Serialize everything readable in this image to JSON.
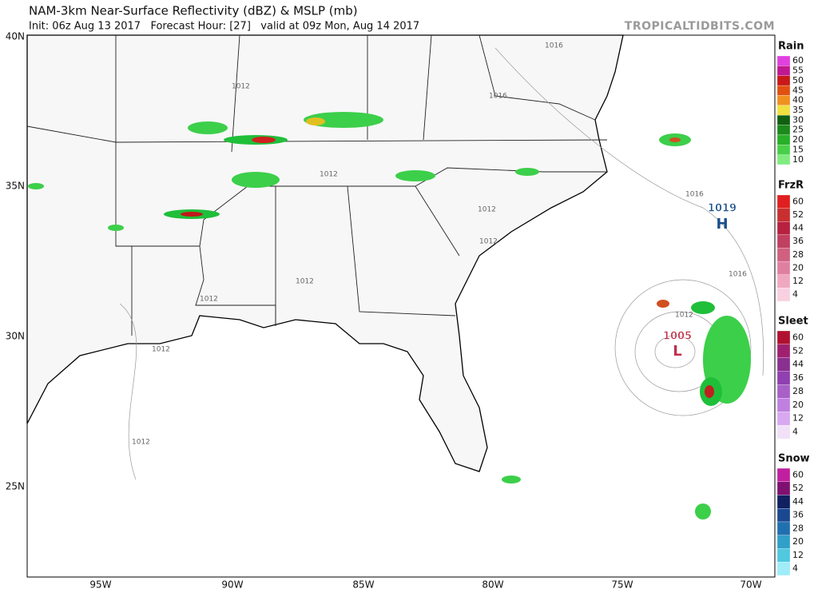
{
  "header": {
    "title": "NAM-3km Near-Surface Reflectivity (dBZ) & MSLP (mb)",
    "subtitle": "Init: 06z Aug 13 2017   Forecast Hour: [27]   valid at 09z Mon, Aug 14 2017",
    "watermark": "TROPICALTIDBITS.COM"
  },
  "map": {
    "lat_labels": [
      "40N",
      "35N",
      "30N",
      "25N"
    ],
    "lon_labels": [
      "95W",
      "90W",
      "85W",
      "80W",
      "75W",
      "70W"
    ],
    "isobar_labels": [
      "1012",
      "1012",
      "1012",
      "1012",
      "1012",
      "1012",
      "1012",
      "1012",
      "1012",
      "1016",
      "1016",
      "1016",
      "1016"
    ],
    "centers": [
      {
        "pressure": "1005",
        "symbol": "L"
      },
      {
        "pressure": "1019",
        "symbol": "H"
      }
    ]
  },
  "legend": [
    {
      "title": "Rain",
      "levels": [
        60,
        55,
        50,
        45,
        40,
        35,
        30,
        25,
        20,
        15,
        10
      ],
      "colors": [
        "#e040e0",
        "#c01890",
        "#c81818",
        "#e05010",
        "#f09020",
        "#f0e040",
        "#106010",
        "#1a8a1a",
        "#28b028",
        "#48d048",
        "#80ec80"
      ]
    },
    {
      "title": "FrzR",
      "levels": [
        60,
        52,
        44,
        36,
        28,
        20,
        12,
        4
      ],
      "colors": [
        "#e02020",
        "#c83030",
        "#b82040",
        "#c04060",
        "#d06080",
        "#e080a0",
        "#f0a8c0",
        "#f8d0e0"
      ]
    },
    {
      "title": "Sleet",
      "levels": [
        60,
        52,
        44,
        36,
        28,
        20,
        12,
        4
      ],
      "colors": [
        "#b01030",
        "#a02070",
        "#8a3090",
        "#9040b0",
        "#a860c8",
        "#c080e0",
        "#d8a8f0",
        "#f0e0f8"
      ]
    },
    {
      "title": "Snow",
      "levels": [
        60,
        52,
        44,
        36,
        28,
        20,
        12,
        4
      ],
      "colors": [
        "#c020a0",
        "#801070",
        "#102060",
        "#1a4890",
        "#2070b0",
        "#30a0c8",
        "#50c8e0",
        "#a0ecf8"
      ]
    }
  ]
}
